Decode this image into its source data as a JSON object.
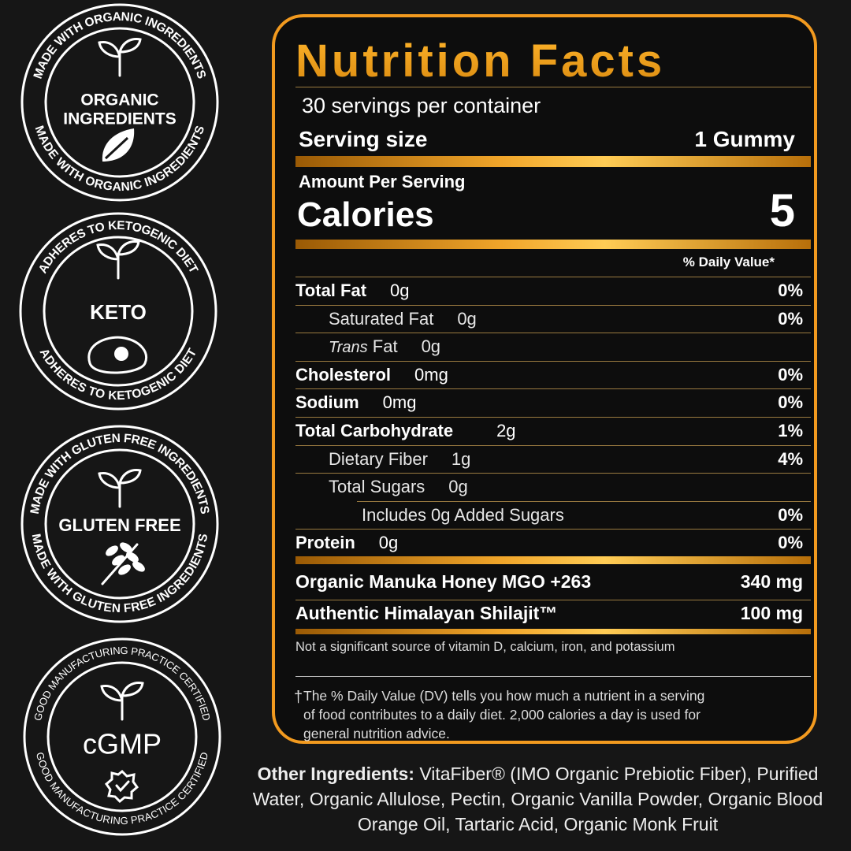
{
  "badges": [
    {
      "ring_top": "MADE WITH ORGANIC INGREDIENTS",
      "label": [
        "ORGANIC",
        "INGREDIENTS"
      ],
      "ring_bottom": "MADE WITH ORGANIC INGREDIENTS"
    },
    {
      "ring_top": "ADHERES TO KETOGENIC DIET",
      "label": [
        "KETO"
      ],
      "ring_bottom": "ADHERES TO KETOGENIC DIET"
    },
    {
      "ring_top": "MADE WITH GLUTEN FREE INGREDIENTS",
      "label": [
        "GLUTEN FREE"
      ],
      "ring_bottom": "MADE WITH GLUTEN FREE INGREDIENTS"
    },
    {
      "ring_top": "GOOD MANUFACTURING PRACTICE CERTIFIED",
      "label": [
        "cGMP"
      ],
      "ring_bottom": "GOOD MANUFACTURING PRACTICE CERTIFIED"
    }
  ],
  "nutrition_facts": {
    "title": "Nutrition Facts",
    "servings": "30 servings per container",
    "serving_size_label": "Serving size",
    "serving_size": "1 Gummy",
    "amount_label": "Amount Per Serving",
    "calories_label": "Calories",
    "calories": "5",
    "dv_header": "% Daily Value*",
    "nutrients": [
      {
        "name": "Total Fat",
        "amount": "0g",
        "dv": "0%",
        "sub": [
          {
            "name": "Saturated Fat",
            "amount": "0g",
            "dv": "0%"
          },
          {
            "name_italic": "Trans",
            "name": "Fat",
            "amount": "0g"
          }
        ]
      },
      {
        "name": "Cholesterol",
        "amount": "0mg",
        "dv": "0%"
      },
      {
        "name": "Sodium",
        "amount": "0mg",
        "dv": "0%"
      },
      {
        "name": "Total Carbohydrate",
        "amount": "2g",
        "dv": "1%",
        "sub": [
          {
            "name": "Dietary Fiber",
            "amount": "1g",
            "dv": "4%"
          },
          {
            "name": "Total Sugars",
            "amount": "0g",
            "sub": [
              {
                "name": "Includes 0g Added Sugars",
                "dv": "0%"
              }
            ]
          }
        ]
      },
      {
        "name": "Protein",
        "amount": "0g",
        "dv": "0%"
      }
    ],
    "extras": [
      {
        "name": "Organic Manuka Honey MGO +263",
        "amount": "340 mg"
      },
      {
        "name": "Authentic Himalayan Shilajit™",
        "amount": "100 mg"
      }
    ],
    "footnote_sources": "Not a significant source of vitamin D, calcium, iron, and potassium",
    "footnote_dagger": "†",
    "footnote_dv": "The % Daily Value (DV) tells you how much a nutrient in a serving of food contributes to a daily diet. 2,000 calories a day is used for general nutrition advice."
  },
  "other_ingredients": {
    "label": "Other Ingredients:",
    "text": "VitaFiber® (IMO Organic Prebiotic Fiber), Purified Water, Organic Allulose, Pectin, Organic Vanilla Powder, Organic Blood Orange Oil, Tartaric Acid, Organic Monk Fruit"
  }
}
